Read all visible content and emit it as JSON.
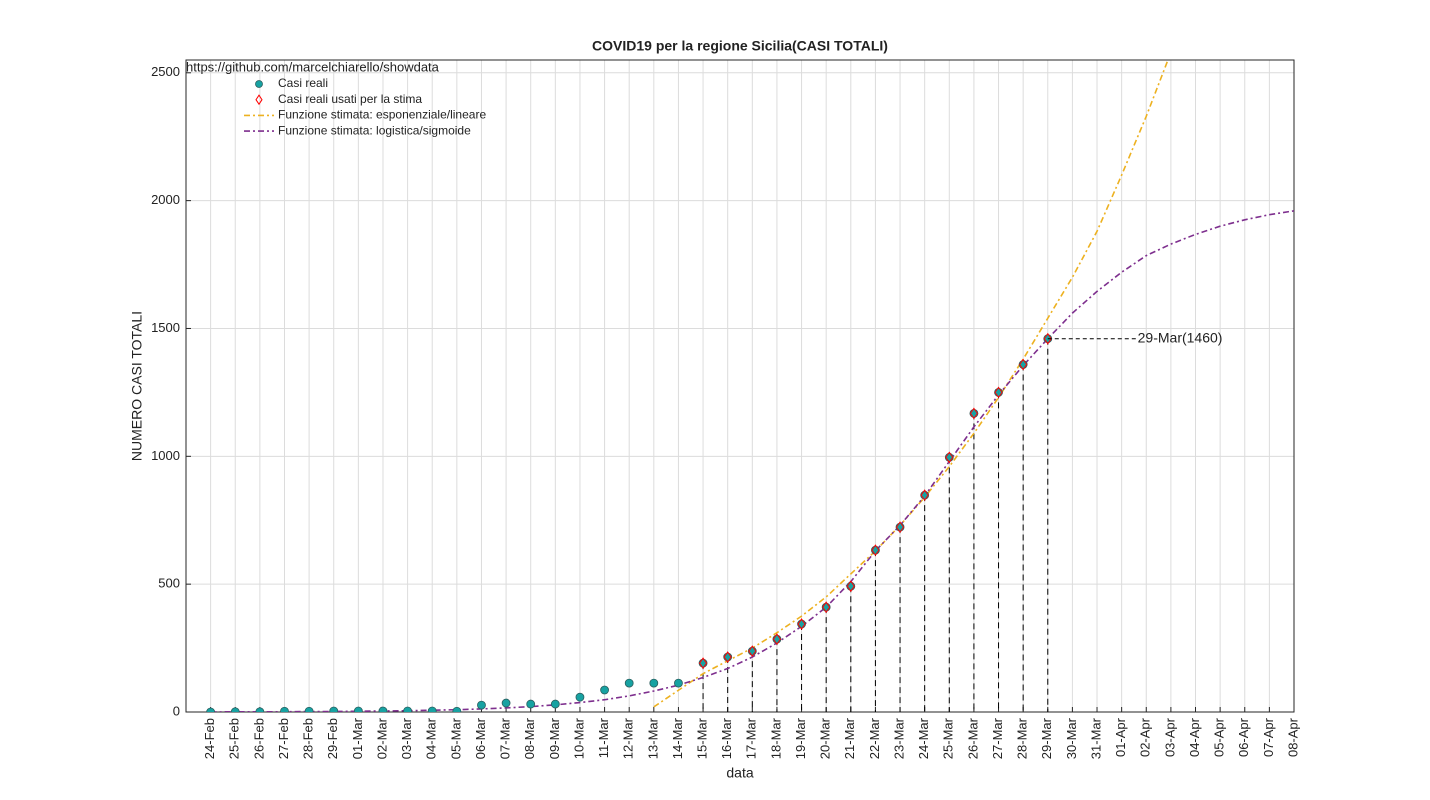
{
  "chart_data": {
    "type": "line",
    "title": "COVID19 per la regione Sicilia(CASI TOTALI)",
    "source": "https://github.com/marcelchiarello/showdata",
    "xlabel": "data",
    "ylabel": "NUMERO CASI TOTALI",
    "categories": [
      "24-Feb",
      "25-Feb",
      "26-Feb",
      "27-Feb",
      "28-Feb",
      "29-Feb",
      "01-Mar",
      "02-Mar",
      "03-Mar",
      "04-Mar",
      "05-Mar",
      "06-Mar",
      "07-Mar",
      "08-Mar",
      "09-Mar",
      "10-Mar",
      "11-Mar",
      "12-Mar",
      "13-Mar",
      "14-Mar",
      "15-Mar",
      "16-Mar",
      "17-Mar",
      "18-Mar",
      "19-Mar",
      "20-Mar",
      "21-Mar",
      "22-Mar",
      "23-Mar",
      "24-Mar",
      "25-Mar",
      "26-Mar",
      "27-Mar",
      "28-Mar",
      "29-Mar",
      "30-Mar",
      "31-Mar",
      "01-Apr",
      "02-Apr",
      "03-Apr",
      "04-Apr",
      "05-Apr",
      "06-Apr",
      "07-Apr",
      "08-Apr"
    ],
    "series": [
      {
        "name": "Casi reali",
        "color": "#17a2a2",
        "marker": "circle",
        "values": [
          0,
          1,
          1,
          3,
          3,
          4,
          4,
          4,
          4,
          4,
          3,
          27,
          35,
          31,
          31,
          58,
          86,
          113,
          113,
          113,
          191,
          215,
          238,
          285,
          344,
          410,
          492,
          633,
          723,
          848,
          996,
          1168,
          1250,
          1359,
          1460,
          null,
          null,
          null,
          null,
          null,
          null,
          null,
          null,
          null,
          null
        ]
      },
      {
        "name": "Casi reali usati per la stima",
        "color": "#ff0000",
        "marker": "diamond",
        "droplines": true,
        "values": [
          null,
          null,
          null,
          null,
          null,
          null,
          null,
          null,
          null,
          null,
          null,
          null,
          null,
          null,
          null,
          null,
          null,
          null,
          null,
          null,
          191,
          215,
          238,
          285,
          344,
          410,
          492,
          633,
          723,
          848,
          996,
          1168,
          1250,
          1359,
          1460,
          null,
          null,
          null,
          null,
          null,
          null,
          null,
          null,
          null,
          null
        ]
      },
      {
        "name": "Funzione stimata: esponenziale/lineare",
        "color": "#edb120",
        "dash": "6 3 2 3",
        "values": [
          null,
          null,
          null,
          null,
          null,
          null,
          null,
          null,
          null,
          null,
          null,
          null,
          null,
          null,
          null,
          null,
          null,
          null,
          20,
          85,
          150,
          200,
          250,
          310,
          375,
          450,
          540,
          630,
          730,
          840,
          960,
          1090,
          1230,
          1380,
          1540,
          1700,
          1880,
          2100,
          2330,
          2580,
          null,
          null,
          null,
          null,
          null
        ]
      },
      {
        "name": "Funzione stimata: logistica/sigmoide",
        "color": "#7e2f8e",
        "dash": "6 3 2 3",
        "values": [
          0,
          1,
          1,
          1,
          2,
          2,
          3,
          4,
          5,
          7,
          9,
          12,
          16,
          21,
          28,
          37,
          48,
          63,
          82,
          105,
          135,
          170,
          215,
          270,
          335,
          410,
          510,
          630,
          730,
          845,
          980,
          1115,
          1240,
          1355,
          1460,
          1560,
          1645,
          1720,
          1785,
          1830,
          1868,
          1900,
          1925,
          1945,
          1960
        ]
      }
    ],
    "annotation": {
      "text": "29-Mar(1460)"
    },
    "ylim": [
      0,
      2550
    ],
    "yticks": [
      0,
      500,
      1000,
      1500,
      2000,
      2500
    ],
    "grid": true,
    "legend": "upper-left"
  }
}
